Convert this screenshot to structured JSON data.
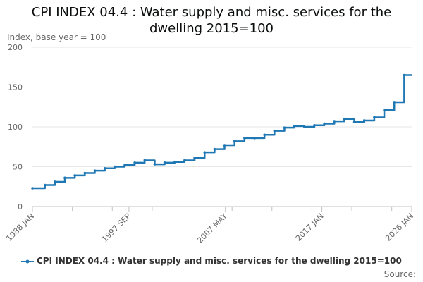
{
  "chart_data": {
    "type": "line",
    "title_line1": "CPI INDEX 04.4 : Water supply and misc. services for the",
    "title_line2": "dwelling 2015=100",
    "ylabel": "Index, base year = 100",
    "ylim": [
      0,
      200
    ],
    "yticks": [
      "0",
      "50",
      "100",
      "150",
      "200"
    ],
    "xlim": [
      1988.0,
      2026.0
    ],
    "xticks": [
      {
        "label": "1988 JAN",
        "x": 1988.0
      },
      {
        "label": "1997 SEP",
        "x": 1997.67
      },
      {
        "label": "2007 MAY",
        "x": 2007.33
      },
      {
        "label": "2017 JAN",
        "x": 2017.0
      },
      {
        "label": "2026 JAN",
        "x": 2026.0
      }
    ],
    "grid": true,
    "legend_position": "bottom",
    "series": [
      {
        "name": "CPI INDEX 04.4 : Water supply and misc. services for the dwelling 2015=100",
        "color": "#1f77b4",
        "points": [
          [
            1988.0,
            23
          ],
          [
            1989.25,
            27
          ],
          [
            1990.25,
            31
          ],
          [
            1991.25,
            36
          ],
          [
            1992.25,
            39
          ],
          [
            1993.25,
            42
          ],
          [
            1994.25,
            45
          ],
          [
            1995.25,
            48
          ],
          [
            1996.25,
            50
          ],
          [
            1997.25,
            52
          ],
          [
            1998.25,
            55
          ],
          [
            1999.25,
            58
          ],
          [
            2000.25,
            53
          ],
          [
            2001.25,
            55
          ],
          [
            2002.25,
            56
          ],
          [
            2003.25,
            58
          ],
          [
            2004.25,
            61
          ],
          [
            2005.25,
            68
          ],
          [
            2006.25,
            72
          ],
          [
            2007.25,
            77
          ],
          [
            2008.25,
            82
          ],
          [
            2009.25,
            86
          ],
          [
            2010.25,
            86
          ],
          [
            2011.25,
            90
          ],
          [
            2012.25,
            95
          ],
          [
            2013.25,
            99
          ],
          [
            2014.25,
            101
          ],
          [
            2015.25,
            100
          ],
          [
            2016.25,
            102
          ],
          [
            2017.25,
            104
          ],
          [
            2018.25,
            107
          ],
          [
            2019.25,
            110
          ],
          [
            2020.25,
            106
          ],
          [
            2021.25,
            108
          ],
          [
            2022.25,
            112
          ],
          [
            2023.25,
            121
          ],
          [
            2024.25,
            131
          ],
          [
            2025.25,
            165
          ]
        ],
        "end_x": 2026.0
      }
    ]
  },
  "source_label": "Source:"
}
